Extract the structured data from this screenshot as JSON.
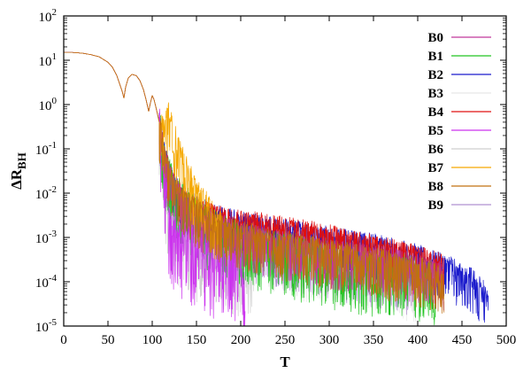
{
  "chart_data": {
    "type": "line",
    "xlabel": "T",
    "ylabel": {
      "main": "ΔR",
      "sub": "BH"
    },
    "xlim": [
      0,
      500
    ],
    "ylim": [
      1e-05,
      100
    ],
    "yscale": "log",
    "grid": false,
    "legend_position": "top-right",
    "xticks": [
      0,
      50,
      100,
      150,
      200,
      250,
      300,
      350,
      400,
      450,
      500
    ],
    "xtick_labels": [
      "0",
      "50",
      "100",
      "150",
      "200",
      "250",
      "300",
      "350",
      "400",
      "450",
      "500"
    ],
    "yticks": [
      {
        "value": 1e-05,
        "base": "10",
        "exp": "-5"
      },
      {
        "value": 0.0001,
        "base": "10",
        "exp": "-4"
      },
      {
        "value": 0.001,
        "base": "10",
        "exp": "-3"
      },
      {
        "value": 0.01,
        "base": "10",
        "exp": "-2"
      },
      {
        "value": 0.1,
        "base": "10",
        "exp": "-1"
      },
      {
        "value": 1,
        "base": "10",
        "exp": "0"
      },
      {
        "value": 10,
        "base": "10",
        "exp": "1"
      },
      {
        "value": 100,
        "base": "10",
        "exp": "2"
      }
    ],
    "shared_early_curve": {
      "x": [
        0,
        10,
        20,
        30,
        40,
        50,
        55,
        60,
        63,
        66,
        68,
        70,
        73,
        77,
        82,
        86,
        90,
        93,
        96,
        98,
        100,
        102,
        104,
        106,
        108
      ],
      "y": [
        15,
        15,
        14.5,
        13.5,
        12,
        9,
        7,
        4.5,
        3,
        2,
        1.4,
        2.5,
        4,
        4.8,
        4.5,
        3.5,
        2.2,
        1.3,
        0.7,
        1.1,
        1.6,
        1.3,
        0.9,
        0.6,
        0.4
      ]
    },
    "series": [
      {
        "name": "B0",
        "color": "#c0389a",
        "x": [
          108,
          115,
          125,
          140,
          160,
          180,
          200,
          230,
          260,
          300,
          340,
          380,
          410,
          430
        ],
        "y": [
          0.4,
          0.05,
          0.015,
          0.006,
          0.003,
          0.0018,
          0.0012,
          0.0009,
          0.0007,
          0.0005,
          0.0004,
          0.0003,
          0.0002,
          0.00016
        ],
        "noise": 0.55
      },
      {
        "name": "B1",
        "color": "#22c422",
        "x": [
          108,
          115,
          125,
          140,
          160,
          180,
          200,
          230,
          260,
          300,
          340,
          380,
          410,
          420
        ],
        "y": [
          0.4,
          0.05,
          0.014,
          0.006,
          0.0025,
          0.0015,
          0.001,
          0.0007,
          0.0005,
          0.0003,
          0.00022,
          0.00018,
          0.00014,
          0.00012
        ],
        "noise": 0.7
      },
      {
        "name": "B2",
        "color": "#1a1acc",
        "x": [
          108,
          115,
          125,
          140,
          160,
          180,
          200,
          250,
          300,
          350,
          400,
          440,
          460,
          475,
          480
        ],
        "y": [
          0.4,
          0.06,
          0.016,
          0.007,
          0.004,
          0.003,
          0.0022,
          0.0015,
          0.001,
          0.0007,
          0.0004,
          0.0002,
          0.00012,
          6e-05,
          3e-05
        ],
        "noise": 0.5
      },
      {
        "name": "B3",
        "color": "#e6e6e6",
        "x": [
          108,
          115,
          125,
          140,
          160,
          180,
          200,
          230,
          260,
          300,
          340,
          380,
          400
        ],
        "y": [
          0.4,
          0.05,
          0.012,
          0.005,
          0.002,
          0.0012,
          0.0008,
          0.0006,
          0.0004,
          0.0003,
          0.00022,
          0.00016,
          0.00012
        ],
        "noise": 0.65
      },
      {
        "name": "B4",
        "color": "#e01010",
        "x": [
          108,
          115,
          125,
          140,
          160,
          180,
          200,
          250,
          300,
          350,
          400,
          420,
          430
        ],
        "y": [
          0.4,
          0.06,
          0.015,
          0.007,
          0.004,
          0.0032,
          0.0026,
          0.0018,
          0.0012,
          0.0007,
          0.0004,
          0.0003,
          0.00025
        ],
        "noise": 0.45
      },
      {
        "name": "B5",
        "color": "#cc33ee",
        "x": [
          108,
          112,
          116,
          120,
          130,
          140,
          150,
          160,
          170,
          180,
          190,
          200,
          205
        ],
        "y": [
          0.4,
          0.05,
          0.008,
          0.002,
          0.001,
          0.0008,
          0.0006,
          0.0005,
          0.0004,
          0.00035,
          0.0003,
          0.00025,
          4e-05
        ],
        "noise": 0.9
      },
      {
        "name": "B6",
        "color": "#cfcfcf",
        "x": [
          108,
          112,
          118,
          125,
          135,
          150,
          165,
          180,
          195,
          210,
          215
        ],
        "y": [
          0.4,
          0.04,
          0.006,
          0.002,
          0.0012,
          0.0008,
          0.0006,
          0.00045,
          0.00035,
          0.00025,
          0.0002
        ],
        "noise": 0.85
      },
      {
        "name": "B7",
        "color": "#f5a800",
        "x": [
          108,
          112,
          118,
          124,
          130,
          140,
          150,
          160,
          170,
          178
        ],
        "y": [
          0.4,
          0.3,
          0.6,
          0.25,
          0.1,
          0.03,
          0.012,
          0.006,
          0.003,
          0.002
        ],
        "noise": 0.6
      },
      {
        "name": "B8",
        "color": "#c27010",
        "x": [
          108,
          115,
          125,
          140,
          160,
          180,
          200,
          230,
          260,
          300,
          340,
          380,
          410,
          430
        ],
        "y": [
          0.4,
          0.05,
          0.013,
          0.006,
          0.003,
          0.0018,
          0.0013,
          0.0009,
          0.0007,
          0.0005,
          0.00035,
          0.00025,
          0.00018,
          0.00014
        ],
        "noise": 0.55
      },
      {
        "name": "B9",
        "color": "#b090d0",
        "x": [
          108,
          115,
          125,
          140,
          160,
          180,
          200,
          230,
          260,
          300,
          340,
          380,
          400
        ],
        "y": [
          0.4,
          0.05,
          0.012,
          0.005,
          0.0025,
          0.0015,
          0.001,
          0.0007,
          0.0005,
          0.00035,
          0.00025,
          0.00018,
          0.00014
        ],
        "noise": 0.6
      }
    ],
    "draw_order": [
      "B3",
      "B6",
      "B9",
      "B2",
      "B4",
      "B1",
      "B0",
      "B5",
      "B7",
      "B8"
    ]
  }
}
